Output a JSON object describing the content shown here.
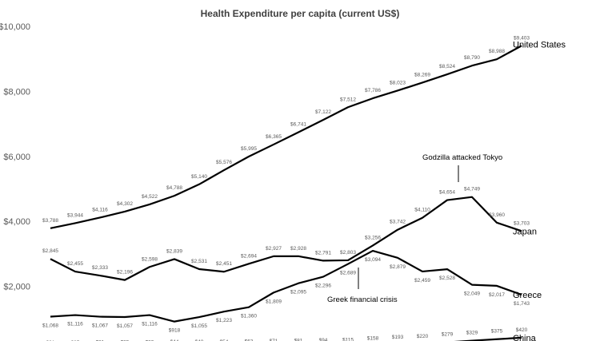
{
  "chart_data": {
    "type": "line",
    "title": "Health Expenditure per capita (current US$)",
    "xlabel": "",
    "ylabel": "",
    "ylim": [
      0,
      10000
    ],
    "yticks": [
      "$2,000",
      "$4,000",
      "$6,000",
      "$8,000",
      "$10,000"
    ],
    "ytick_values": [
      2000,
      4000,
      6000,
      8000,
      10000
    ],
    "grid": false,
    "legend": "inline labels at right end of lines",
    "line_color": "#000000",
    "series": [
      {
        "name": "United States",
        "label_pos": "above",
        "values": [
          3788,
          3944,
          4116,
          4302,
          4522,
          4788,
          5140,
          5576,
          5995,
          6365,
          6741,
          7122,
          7512,
          7786,
          8023,
          8269,
          8524,
          8790,
          8988,
          9403
        ],
        "labels": [
          "$3,788",
          "$3,944",
          "$4,116",
          "$4,302",
          "$4,522",
          "$4,788",
          "$5,140",
          "$5,576",
          "$5,995",
          "$6,365",
          "$6,741",
          "$7,122",
          "$7,512",
          "$7,786",
          "$8,023",
          "$8,269",
          "$8,524",
          "$8,790",
          "$8,988",
          "$9,403"
        ]
      },
      {
        "name": "Japan",
        "label_pos": "above",
        "values": [
          2845,
          2455,
          2333,
          2196,
          2598,
          2839,
          2531,
          2451,
          2694,
          2927,
          2928,
          2791,
          2803,
          3256,
          3742,
          4110,
          4654,
          4749,
          3960,
          3703
        ],
        "labels": [
          "$2,845",
          "$2,455",
          "$2,333",
          "$2,196",
          "$2,598",
          "$2,839",
          "$2,531",
          "$2,451",
          "$2,694",
          "$2,927",
          "$2,928",
          "$2,791",
          "$2,803",
          "$3,256",
          "$3,742",
          "$4,110",
          "$4,654",
          "$4,749",
          "$3,960",
          "$3,703"
        ]
      },
      {
        "name": "Greece",
        "label_pos": "below",
        "values": [
          1068,
          1116,
          1067,
          1057,
          1116,
          918,
          1055,
          1223,
          1360,
          1809,
          2095,
          2296,
          2689,
          3094,
          2879,
          2459,
          2528,
          2049,
          2017,
          1743
        ],
        "labels": [
          "$1,068",
          "$1,116",
          "$1,067",
          "$1,057",
          "$1,116",
          "$918",
          "$1,055",
          "$1,223",
          "$1,360",
          "$1,809",
          "$2,095",
          "$2,296",
          "$2,689",
          "$3,094",
          "$2,879",
          "$2,459",
          "$2,528",
          "$2,049",
          "$2,017",
          "$1,743"
        ]
      },
      {
        "name": "China",
        "label_pos": "above",
        "values": [
          21,
          25,
          31,
          35,
          39,
          44,
          48,
          54,
          63,
          71,
          81,
          94,
          115,
          158,
          193,
          220,
          279,
          329,
          375,
          420
        ],
        "labels": [
          "$21",
          "$25",
          "$31",
          "$35",
          "$39",
          "$44",
          "$48",
          "$54",
          "$63",
          "$71",
          "$81",
          "$94",
          "$115",
          "$158",
          "$193",
          "$220",
          "$279",
          "$329",
          "$375",
          "$420"
        ]
      }
    ],
    "annotations": [
      {
        "text": "Godzilla attacked Tokyo",
        "series": "Japan",
        "point_index": 17
      },
      {
        "text": "Greek financial crisis",
        "series": "Greece",
        "point_index": 13
      }
    ]
  }
}
